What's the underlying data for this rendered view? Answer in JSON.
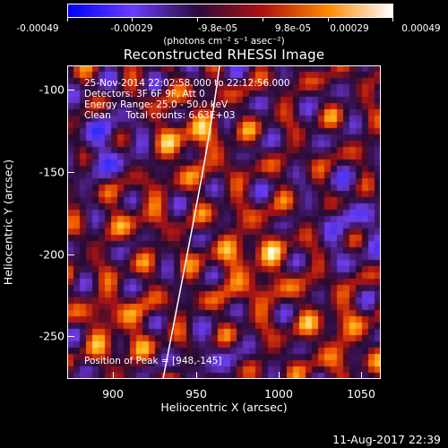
{
  "colorbar": {
    "labels": [
      "-0.00049",
      "-0.00029",
      "-9.8e-05",
      "9.8e-05",
      "0.00029",
      "0.00049"
    ],
    "units": "(photons cm⁻² s⁻¹ asec⁻²)",
    "colors": [
      "#0000ff",
      "#6a3cff",
      "#2a0a3a",
      "#b01010",
      "#ff8800",
      "#ffffff"
    ]
  },
  "title": "Reconstructed RHESSI Image",
  "annotations": {
    "line1": "25-Nov-2014 22:02:58.000 to 22:12:56.000",
    "line2": "Detectors: 3F 6F 9F, Att 0",
    "line3": "Energy Range: 25.0 - 50.0 keV",
    "line4": "Clean     Total counts: 6.63E+03",
    "peak": "Position of Peak = [948,-145]"
  },
  "axes": {
    "xlabel": "Heliocentric X (arcsec)",
    "ylabel": "Heliocentric Y (arcsec)",
    "xticks": [
      "900",
      "950",
      "1000",
      "1050"
    ],
    "yticks": [
      "-100",
      "-150",
      "-200",
      "-250"
    ]
  },
  "footer": {
    "timestamp": "11-Aug-2017 22:39"
  }
}
